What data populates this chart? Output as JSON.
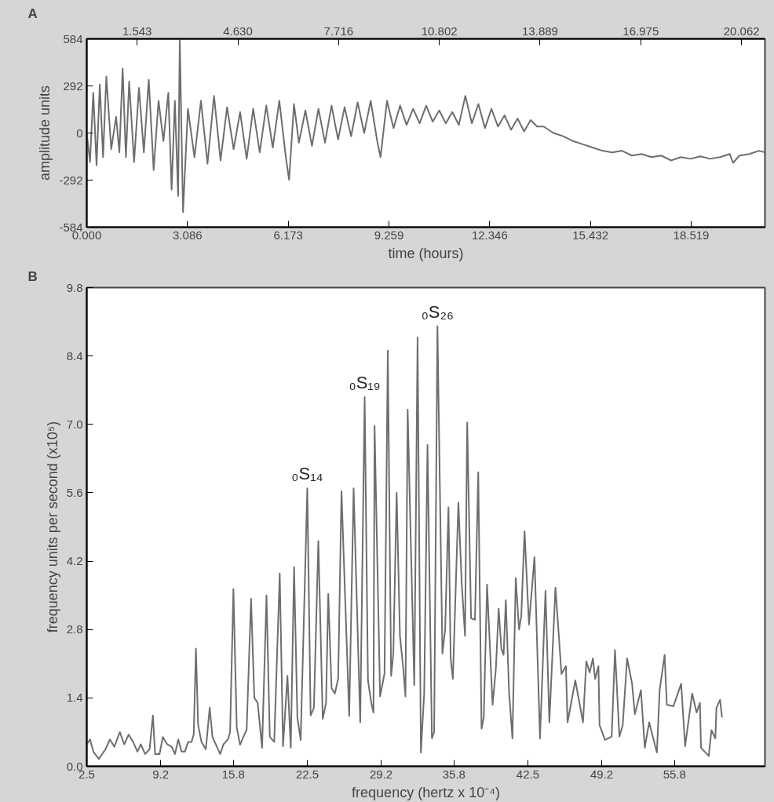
{
  "chart_data": [
    {
      "type": "line",
      "title": "A",
      "xlabel": "time (hours)",
      "ylabel": "amplitude units",
      "xlim": [
        0,
        20.78
      ],
      "ylim": [
        -584,
        584
      ],
      "xticks": [
        {
          "value": 0,
          "label": "0.000"
        },
        3.086,
        6.173,
        9.259,
        12.346,
        15.432,
        18.519
      ],
      "x2lim": [
        0,
        20.78
      ],
      "x2ticks": [
        1.543,
        {
          "value": 4.63,
          "label": "4.630"
        },
        7.716,
        10.802,
        13.889,
        16.975,
        20.062
      ],
      "yticks": [
        -584,
        -292,
        0,
        292,
        584
      ],
      "grid": false,
      "line_style": "solid",
      "series": [
        {
          "color": "#6e6e6e",
          "x": [
            0.0,
            0.1,
            0.2,
            0.3,
            0.4,
            0.5,
            0.6,
            0.75,
            0.9,
            1.0,
            1.1,
            1.2,
            1.3,
            1.45,
            1.6,
            1.75,
            1.9,
            2.05,
            2.2,
            2.35,
            2.5,
            2.6,
            2.7,
            2.8,
            2.85,
            2.95,
            3.1,
            3.3,
            3.5,
            3.7,
            3.9,
            4.1,
            4.3,
            4.5,
            4.7,
            4.9,
            5.1,
            5.3,
            5.5,
            5.7,
            5.9,
            6.1,
            6.2,
            6.35,
            6.5,
            6.7,
            6.9,
            7.1,
            7.3,
            7.5,
            7.7,
            7.9,
            8.1,
            8.3,
            8.5,
            8.7,
            8.9,
            9.0,
            9.2,
            9.4,
            9.6,
            9.8,
            10.0,
            10.2,
            10.4,
            10.6,
            10.8,
            11.0,
            11.2,
            11.4,
            11.6,
            11.8,
            12.0,
            12.2,
            12.4,
            12.6,
            12.8,
            13.0,
            13.2,
            13.4,
            13.6,
            13.8,
            14.0,
            14.3,
            14.6,
            14.9,
            15.2,
            15.5,
            15.8,
            16.1,
            16.4,
            16.7,
            17.0,
            17.3,
            17.6,
            17.9,
            18.2,
            18.5,
            18.8,
            19.1,
            19.4,
            19.7,
            19.8,
            20.0,
            20.3,
            20.6,
            20.78
          ],
          "values": [
            0,
            -180,
            250,
            -200,
            300,
            -150,
            350,
            -100,
            100,
            -120,
            400,
            -150,
            320,
            -180,
            280,
            -120,
            330,
            -230,
            200,
            -50,
            250,
            -350,
            200,
            -390,
            584,
            -490,
            150,
            -150,
            200,
            -190,
            230,
            -170,
            160,
            -100,
            130,
            -160,
            150,
            -120,
            170,
            -90,
            200,
            -150,
            -290,
            180,
            -60,
            140,
            -80,
            150,
            -60,
            170,
            -40,
            160,
            -20,
            190,
            0,
            200,
            -50,
            -150,
            200,
            30,
            170,
            50,
            150,
            60,
            170,
            70,
            140,
            60,
            130,
            50,
            230,
            60,
            180,
            30,
            150,
            40,
            110,
            20,
            90,
            10,
            80,
            40,
            40,
            0,
            -20,
            -50,
            -70,
            -90,
            -110,
            -120,
            -110,
            -140,
            -130,
            -150,
            -140,
            -170,
            -150,
            -160,
            -145,
            -160,
            -150,
            -130,
            -185,
            -140,
            -130,
            -110,
            -120
          ]
        }
      ]
    },
    {
      "type": "line",
      "title": "B",
      "xlabel": "frequency (hertz x 10⁻⁴)",
      "ylabel": "frequency units per second (x10⁵)",
      "xlim": [
        2.5,
        64.0
      ],
      "ylim": [
        0,
        9.8
      ],
      "xticks": [
        2.5,
        9.2,
        15.8,
        22.5,
        29.2,
        35.8,
        42.5,
        49.2,
        55.8
      ],
      "yticks": [
        {
          "value": 0,
          "label": "0.0"
        },
        1.4,
        2.8,
        4.2,
        5.6,
        {
          "value": 7,
          "label": "7.0"
        },
        8.4,
        9.8
      ],
      "grid": false,
      "line_style": "solid",
      "annotations": [
        {
          "text": "₀S₁₄",
          "x": 22.5,
          "y": 5.69
        },
        {
          "text": "₀S₁₉",
          "x": 27.7,
          "y": 7.56
        },
        {
          "text": "₀S₂₆",
          "x": 34.3,
          "y": 9.01
        }
      ],
      "series": [
        {
          "color": "#6e6e6e",
          "x": [
            2.5,
            2.8,
            3.1,
            3.6,
            4.2,
            4.6,
            5.0,
            5.5,
            5.9,
            6.3,
            6.7,
            7.1,
            7.4,
            7.8,
            8.2,
            8.5,
            8.7,
            9.1,
            9.4,
            9.8,
            10.2,
            10.5,
            10.8,
            11.1,
            11.4,
            11.7,
            12.0,
            12.2,
            12.4,
            12.6,
            12.9,
            13.3,
            13.65,
            13.9,
            14.3,
            14.6,
            14.9,
            15.3,
            15.5,
            15.8,
            16.1,
            16.4,
            16.7,
            17.0,
            17.4,
            17.7,
            18.0,
            18.4,
            18.8,
            19.1,
            19.5,
            20.0,
            20.3,
            20.7,
            21.0,
            21.3,
            21.6,
            21.9,
            22.5,
            22.8,
            23.1,
            23.5,
            23.9,
            24.2,
            24.4,
            24.7,
            25.0,
            25.3,
            25.6,
            26.3,
            26.7,
            27.3,
            27.7,
            28.0,
            28.3,
            28.5,
            28.6,
            29.1,
            29.5,
            29.8,
            30.1,
            30.3,
            30.6,
            30.9,
            31.2,
            31.4,
            31.6,
            32.2,
            32.5,
            32.8,
            33.1,
            33.4,
            33.8,
            34.0,
            34.3,
            34.75,
            35.0,
            35.3,
            35.5,
            35.7,
            36.2,
            36.5,
            36.8,
            37.0,
            37.35,
            37.7,
            38.0,
            38.3,
            38.5,
            38.8,
            39.3,
            39.6,
            39.85,
            40.1,
            40.3,
            40.5,
            40.8,
            41.1,
            41.4,
            41.7,
            41.9,
            42.2,
            42.6,
            43.1,
            43.6,
            44.1,
            44.45,
            45.0,
            45.55,
            45.95,
            46.1,
            46.8,
            47.5,
            47.8,
            48.1,
            48.4,
            48.6,
            48.9,
            49.0,
            49.5,
            50.1,
            50.4,
            50.8,
            51.1,
            51.5,
            51.95,
            52.2,
            52.75,
            53.1,
            53.5,
            54.2,
            54.45,
            54.9,
            55.1,
            55.7,
            56.4,
            56.76,
            57.4,
            57.8,
            58.1,
            58.2,
            58.9,
            59.15,
            59.5,
            59.6,
            59.93,
            60.1
          ],
          "values": [
            0.45,
            0.55,
            0.3,
            0.15,
            0.35,
            0.55,
            0.4,
            0.7,
            0.45,
            0.65,
            0.5,
            0.3,
            0.45,
            0.25,
            0.35,
            1.04,
            0.25,
            0.25,
            0.6,
            0.45,
            0.4,
            0.25,
            0.55,
            0.3,
            0.3,
            0.5,
            0.5,
            0.65,
            2.41,
            0.85,
            0.5,
            0.35,
            1.2,
            0.6,
            0.4,
            0.25,
            0.45,
            0.55,
            0.7,
            3.63,
            0.8,
            0.44,
            0.6,
            0.75,
            3.43,
            1.4,
            1.3,
            0.38,
            3.5,
            0.6,
            0.5,
            3.95,
            0.41,
            1.85,
            0.38,
            4.08,
            1.0,
            0.54,
            5.69,
            1.04,
            1.2,
            4.61,
            0.97,
            1.3,
            3.53,
            1.6,
            1.49,
            1.8,
            5.63,
            1.03,
            5.69,
            0.9,
            7.56,
            1.76,
            1.3,
            1.1,
            6.97,
            1.43,
            1.9,
            8.51,
            1.85,
            2.3,
            5.6,
            2.67,
            2.0,
            1.43,
            7.3,
            1.66,
            8.78,
            0.28,
            1.5,
            6.58,
            0.57,
            0.7,
            9.01,
            2.31,
            2.8,
            5.3,
            2.2,
            1.79,
            5.4,
            3.76,
            2.67,
            7.04,
            3.03,
            3.0,
            6.02,
            0.77,
            1.0,
            3.72,
            1.26,
            2.0,
            3.23,
            2.4,
            2.28,
            3.4,
            1.5,
            0.57,
            3.85,
            2.8,
            3.07,
            4.81,
            2.9,
            4.28,
            0.57,
            3.59,
            0.9,
            3.66,
            1.89,
            2.05,
            0.9,
            1.76,
            0.9,
            2.15,
            1.92,
            2.21,
            1.79,
            2.05,
            0.84,
            0.54,
            0.61,
            2.38,
            0.61,
            0.84,
            2.21,
            1.69,
            1.07,
            1.56,
            0.38,
            0.9,
            0.28,
            1.56,
            2.28,
            1.26,
            1.23,
            1.69,
            0.41,
            1.49,
            1.1,
            1.3,
            0.38,
            0.21,
            0.74,
            0.57,
            1.2,
            1.36,
            1.0
          ]
        }
      ]
    }
  ]
}
